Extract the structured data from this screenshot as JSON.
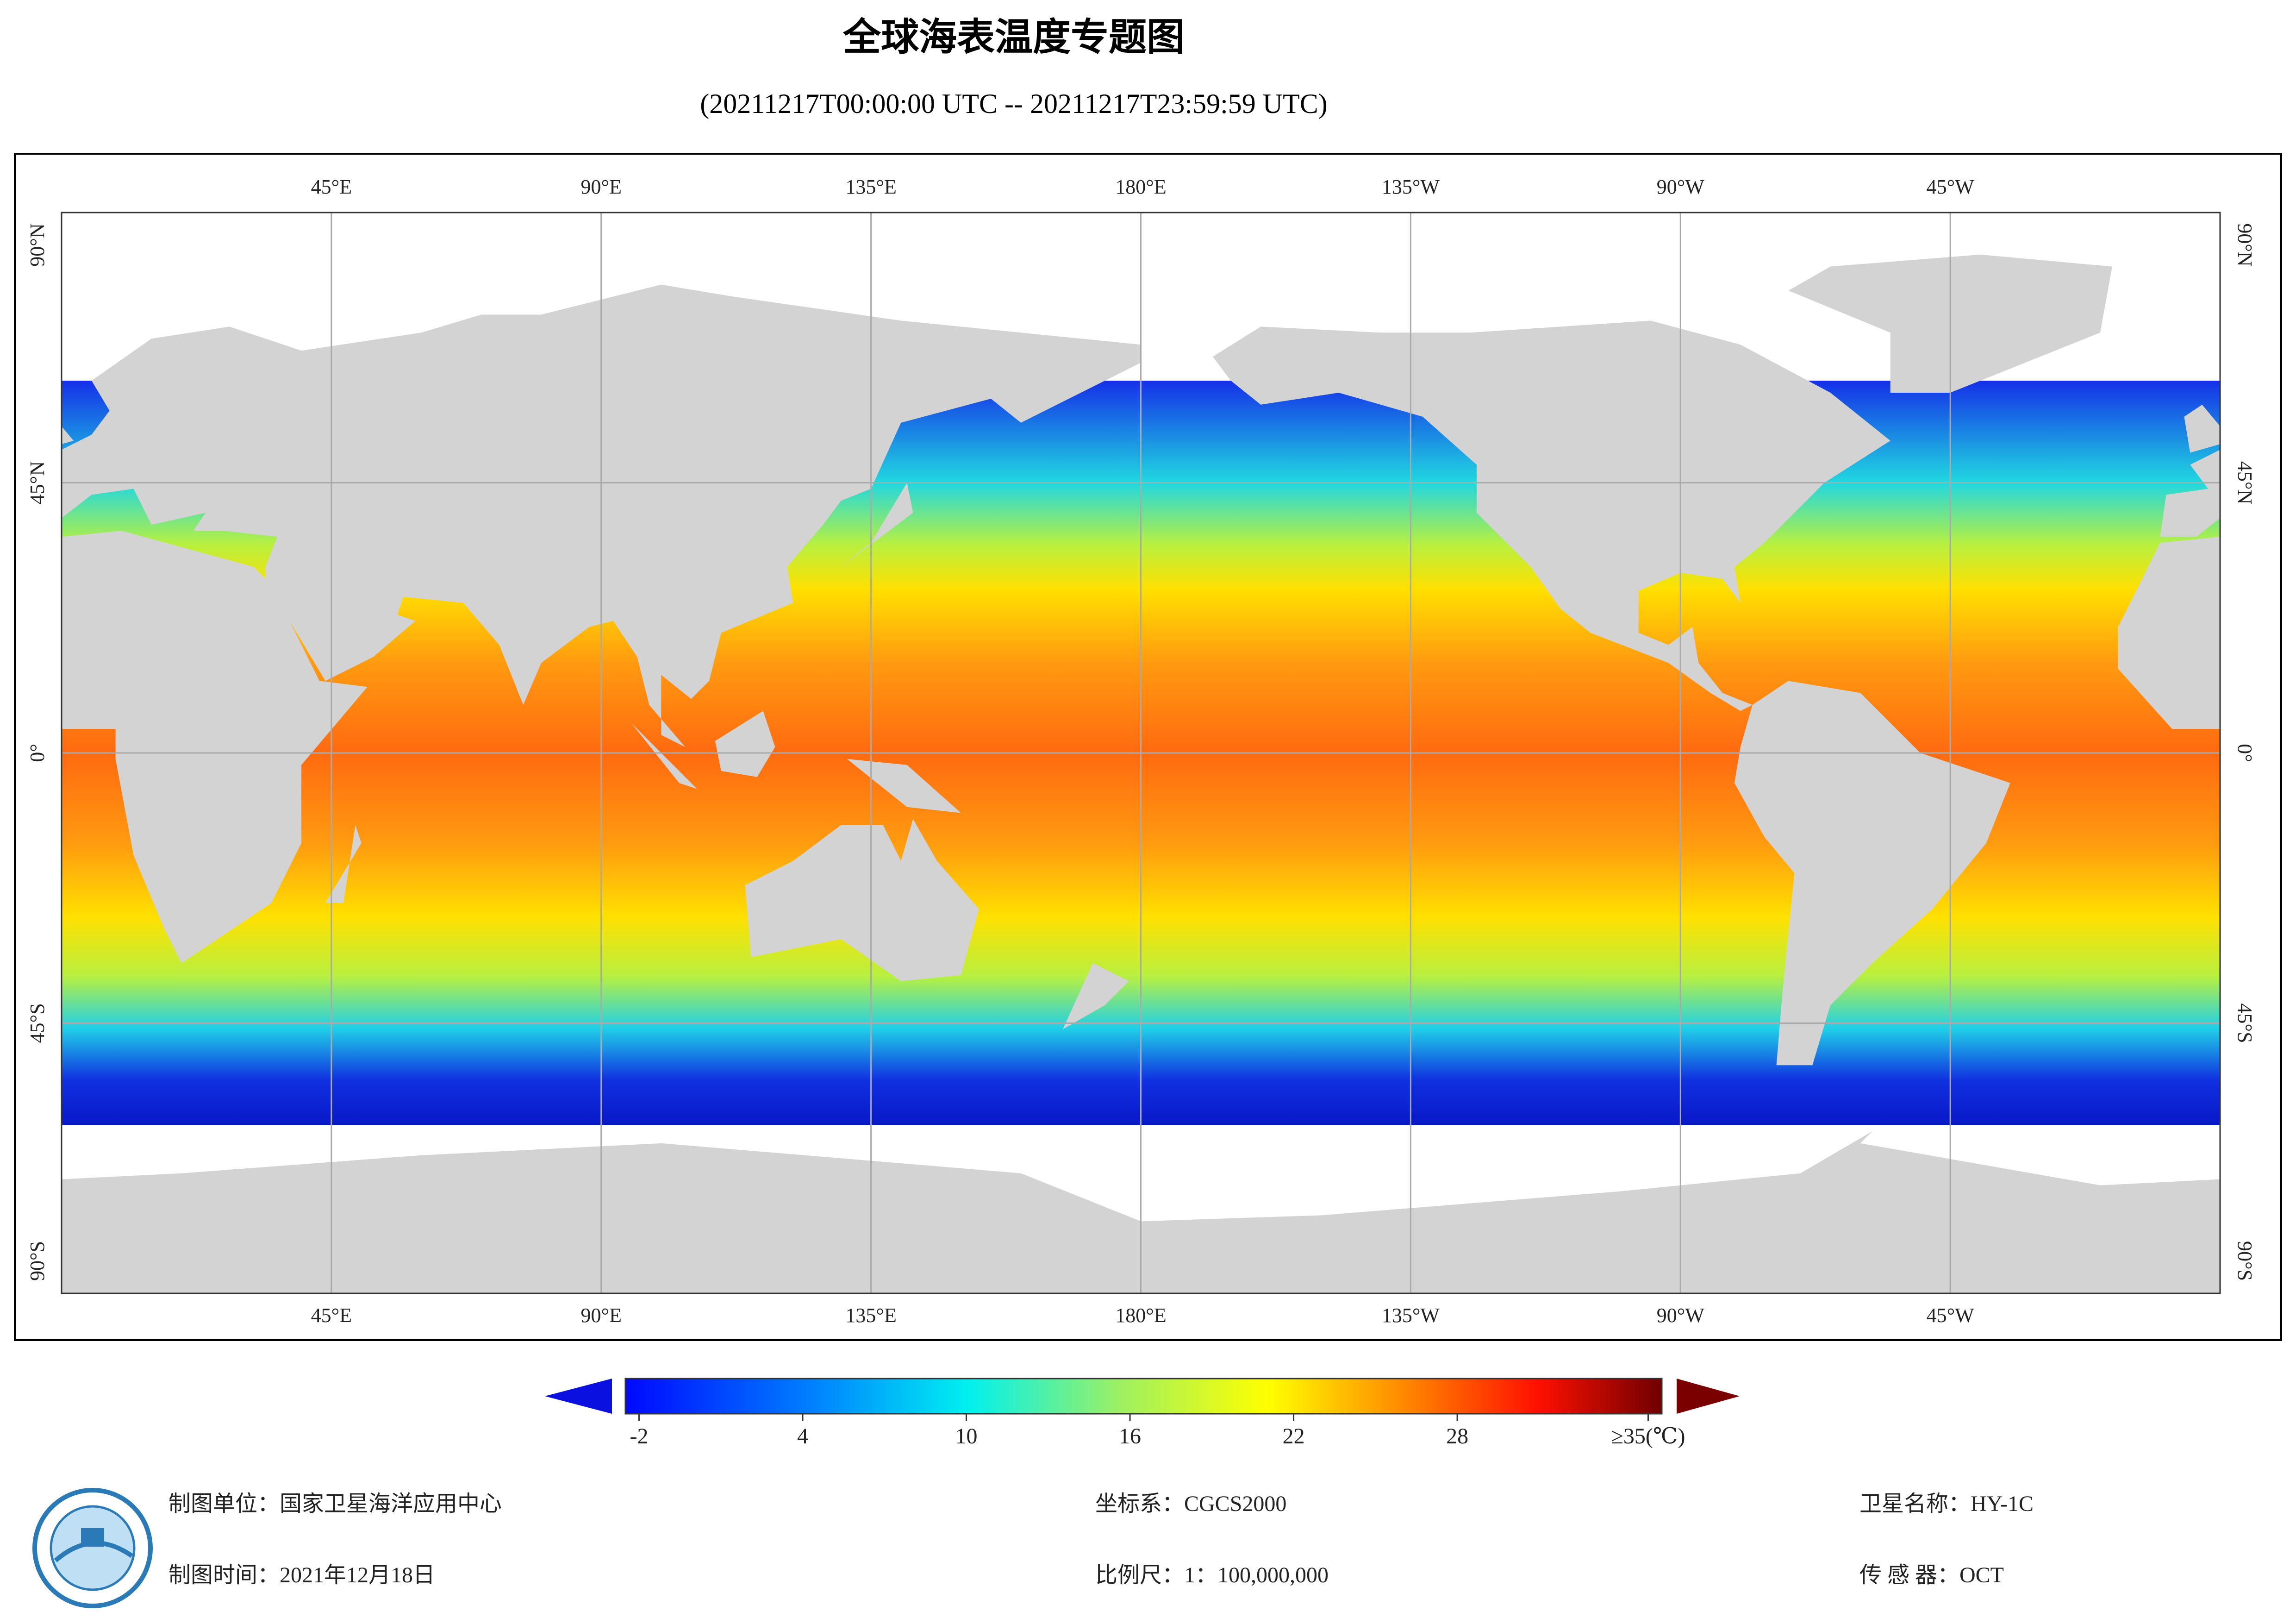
{
  "header": {
    "title": "全球海表温度专题图",
    "subtitle": "(20211217T00:00:00 UTC -- 20211217T23:59:59 UTC)"
  },
  "map": {
    "lon_ticks": [
      {
        "value": 45,
        "label": "45°E"
      },
      {
        "value": 90,
        "label": "90°E"
      },
      {
        "value": 135,
        "label": "135°E"
      },
      {
        "value": 180,
        "label": "180°E"
      },
      {
        "value": 225,
        "label": "135°W"
      },
      {
        "value": 270,
        "label": "90°W"
      },
      {
        "value": 315,
        "label": "45°W"
      }
    ],
    "lat_ticks": [
      {
        "value": 90,
        "label": "90°N"
      },
      {
        "value": 45,
        "label": "45°N"
      },
      {
        "value": 0,
        "label": "0°"
      },
      {
        "value": -45,
        "label": "45°S"
      },
      {
        "value": -90,
        "label": "90°S"
      }
    ]
  },
  "colorbar": {
    "lim": [
      -2.5,
      35.5
    ],
    "ticks": [
      -2,
      4,
      10,
      16,
      22,
      28,
      {
        "value": 35,
        "label": "≥35(℃)"
      }
    ]
  },
  "footer": {
    "unit": "制图单位：国家卫星海洋应用中心",
    "time": "制图时间：2021年12月18日",
    "crs": "坐标系：CGCS2000",
    "scale": "比例尺：1：100,000,000",
    "satellite": "卫星名称：HY-1C",
    "sensor": "传 感 器：OCT"
  }
}
